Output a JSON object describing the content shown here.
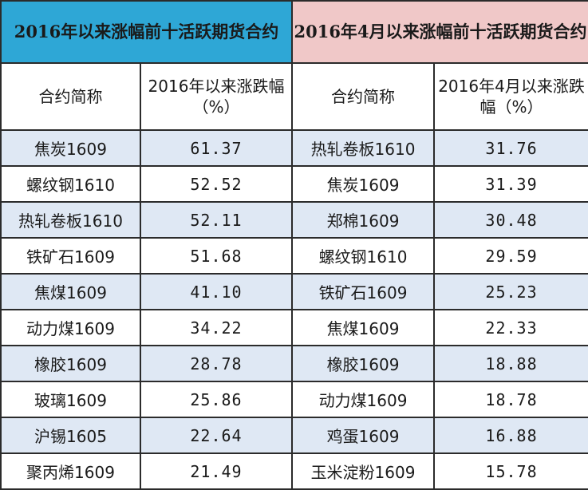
{
  "left": {
    "title": "2016年以来涨幅前十活跃期货合约",
    "col_name": "合约简称",
    "col_change": "2016年以来涨跌幅（%）",
    "rows": [
      {
        "name": "焦炭1609",
        "value": "61.37"
      },
      {
        "name": "螺纹钢1610",
        "value": "52.52"
      },
      {
        "name": "热轧卷板1610",
        "value": "52.11"
      },
      {
        "name": "铁矿石1609",
        "value": "51.68"
      },
      {
        "name": "焦煤1609",
        "value": "41.10"
      },
      {
        "name": "动力煤1609",
        "value": "34.22"
      },
      {
        "name": "橡胶1609",
        "value": "28.78"
      },
      {
        "name": "玻璃1609",
        "value": "25.86"
      },
      {
        "name": "沪锡1605",
        "value": "22.64"
      },
      {
        "name": "聚丙烯1609",
        "value": "21.49"
      }
    ]
  },
  "right": {
    "title": "2016年4月以来涨幅前十活跃期货合约",
    "col_name": "合约简称",
    "col_change": "2016年4月以来涨跌幅（%）",
    "rows": [
      {
        "name": "热轧卷板1610",
        "value": "31.76"
      },
      {
        "name": "焦炭1609",
        "value": "31.39"
      },
      {
        "name": "郑棉1609",
        "value": "30.48"
      },
      {
        "name": "螺纹钢1610",
        "value": "29.59"
      },
      {
        "name": "铁矿石1609",
        "value": "25.23"
      },
      {
        "name": "焦煤1609",
        "value": "22.33"
      },
      {
        "name": "橡胶1609",
        "value": "18.88"
      },
      {
        "name": "动力煤1609",
        "value": "18.78"
      },
      {
        "name": "鸡蛋1609",
        "value": "16.88"
      },
      {
        "name": "玉米淀粉1609",
        "value": "15.78"
      }
    ]
  },
  "colors": {
    "left_header_bg": "#2ea7d6",
    "right_header_bg": "#f0c8c8",
    "alt_row_bg": "#dfe8f4"
  }
}
